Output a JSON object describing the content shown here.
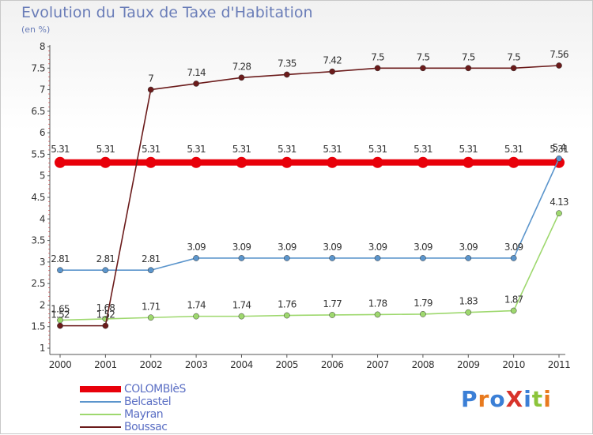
{
  "title": "Evolution du Taux de Taxe d'Habitation",
  "subtitle": "(en %)",
  "brand": "ProXiti",
  "chart_data": {
    "type": "line",
    "x": [
      "2000",
      "2001",
      "2002",
      "2003",
      "2004",
      "2005",
      "2006",
      "2007",
      "2008",
      "2009",
      "2010",
      "2011"
    ],
    "ylim": [
      1,
      8
    ],
    "yticks": [
      "1",
      "1.5",
      "2",
      "2.5",
      "3",
      "3.5",
      "4",
      "4.5",
      "5",
      "5.5",
      "6",
      "6.5",
      "7",
      "7.5",
      "8"
    ],
    "grid": false,
    "legend_position": "bottom-left",
    "series": [
      {
        "name": "COLOMBIèS",
        "color": "#e8000a",
        "values": [
          5.31,
          5.31,
          5.31,
          5.31,
          5.31,
          5.31,
          5.31,
          5.31,
          5.31,
          5.31,
          5.31,
          5.31
        ],
        "labels": [
          "5.31",
          "5.31",
          "5.31",
          "5.31",
          "5.31",
          "5.31",
          "5.31",
          "5.31",
          "5.31",
          "5.31",
          "5.31",
          "5.31"
        ]
      },
      {
        "name": "Belcastel",
        "color": "#5b95cc",
        "values": [
          2.81,
          2.81,
          2.81,
          3.09,
          3.09,
          3.09,
          3.09,
          3.09,
          3.09,
          3.09,
          3.09,
          5.4
        ],
        "labels": [
          "2.81",
          "2.81",
          "2.81",
          "3.09",
          "3.09",
          "3.09",
          "3.09",
          "3.09",
          "3.09",
          "3.09",
          "3.09",
          "5.4"
        ]
      },
      {
        "name": "Mayran",
        "color": "#9ed86e",
        "values": [
          1.65,
          1.68,
          1.71,
          1.74,
          1.74,
          1.76,
          1.77,
          1.78,
          1.79,
          1.83,
          1.87,
          4.13
        ],
        "labels": [
          "1.65",
          "1.68",
          "1.71",
          "1.74",
          "1.74",
          "1.76",
          "1.77",
          "1.78",
          "1.79",
          "1.83",
          "1.87",
          "4.13"
        ]
      },
      {
        "name": "Boussac",
        "color": "#6b1b1b",
        "values": [
          1.52,
          1.52,
          7,
          7.14,
          7.28,
          7.35,
          7.42,
          7.5,
          7.5,
          7.5,
          7.5,
          7.56
        ],
        "labels": [
          "1.52",
          "1.52",
          "7",
          "7.14",
          "7.28",
          "7.35",
          "7.42",
          "7.5",
          "7.5",
          "7.5",
          "7.5",
          "7.56"
        ]
      }
    ]
  }
}
